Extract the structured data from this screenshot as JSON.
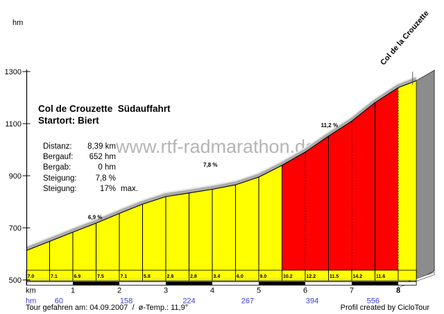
{
  "title": {
    "line1": "Col de Crouzette  Südauffahrt",
    "line2": "Startort: Biert"
  },
  "stats": {
    "rows": [
      {
        "label": "Distanz:",
        "value": "8,39 km"
      },
      {
        "label": "Bergauf:",
        "value": "652 hm"
      },
      {
        "label": "Bergab:",
        "value": "0 hm"
      },
      {
        "label": "Steigung:",
        "value": "7,8 %"
      },
      {
        "label": "Steigung:",
        "value": "17%",
        "suffix": "max."
      }
    ]
  },
  "watermark": "www.rtf-radmarathon.de",
  "summit_label": "Col de la Crouzette",
  "footer": {
    "left": "Tour gefahren am: 04.09.2007  /  ø-Temp.: 11,9°",
    "right": "Profil created by CicloTour"
  },
  "chart_data": {
    "type": "area",
    "title": "Col de Crouzette  Südauffahrt",
    "subtitle": "Startort: Biert",
    "xlabel": "km",
    "ylabel": "hm",
    "climb_row_label": "hm",
    "xlim": [
      0,
      8.39
    ],
    "ylim": [
      500,
      1300
    ],
    "x_ticks": [
      1,
      2,
      3,
      4,
      5,
      6,
      7,
      8
    ],
    "y_ticks": [
      500,
      700,
      900,
      1100,
      1300
    ],
    "grid": false,
    "start_elevation_hm": 613,
    "summit_elevation_hm": 1265,
    "summit_name": "Col de la Crouzette",
    "summit_marker_km": 8.31,
    "segments": [
      {
        "km_from": 0.0,
        "km_to": 0.5,
        "gradient_pct": 7.0,
        "label": "7.0",
        "steep": false
      },
      {
        "km_from": 0.5,
        "km_to": 1.0,
        "gradient_pct": 7.1,
        "label": "7.1",
        "steep": false
      },
      {
        "km_from": 1.0,
        "km_to": 1.5,
        "gradient_pct": 6.9,
        "label": "6.9",
        "steep": false
      },
      {
        "km_from": 1.5,
        "km_to": 2.0,
        "gradient_pct": 7.5,
        "label": "7.5",
        "steep": false
      },
      {
        "km_from": 2.0,
        "km_to": 2.5,
        "gradient_pct": 7.1,
        "label": "7.1",
        "steep": false
      },
      {
        "km_from": 2.5,
        "km_to": 3.0,
        "gradient_pct": 5.8,
        "label": "5.8",
        "steep": false
      },
      {
        "km_from": 3.0,
        "km_to": 3.5,
        "gradient_pct": 2.8,
        "label": "2.8",
        "steep": false
      },
      {
        "km_from": 3.5,
        "km_to": 4.0,
        "gradient_pct": 2.8,
        "label": "2.8",
        "steep": false
      },
      {
        "km_from": 4.0,
        "km_to": 4.5,
        "gradient_pct": 3.4,
        "label": "3.4",
        "steep": false
      },
      {
        "km_from": 4.5,
        "km_to": 5.0,
        "gradient_pct": 6.0,
        "label": "6.0",
        "steep": false
      },
      {
        "km_from": 5.0,
        "km_to": 5.5,
        "gradient_pct": 9.0,
        "label": "9.0",
        "steep": false
      },
      {
        "km_from": 5.5,
        "km_to": 6.0,
        "gradient_pct": 10.2,
        "label": "10.2",
        "steep": true
      },
      {
        "km_from": 6.0,
        "km_to": 6.5,
        "gradient_pct": 12.2,
        "label": "12.2",
        "steep": true
      },
      {
        "km_from": 6.5,
        "km_to": 7.0,
        "gradient_pct": 11.5,
        "label": "11.5",
        "steep": true
      },
      {
        "km_from": 7.0,
        "km_to": 7.5,
        "gradient_pct": 14.2,
        "label": "14.2",
        "steep": true
      },
      {
        "km_from": 7.5,
        "km_to": 8.0,
        "gradient_pct": 11.6,
        "label": "11.6",
        "steep": true
      },
      {
        "km_from": 8.0,
        "km_to": 8.39,
        "gradient_pct": null,
        "label": "",
        "steep": false
      }
    ],
    "climb_markers": [
      {
        "x_km": 0.7,
        "value": "60"
      },
      {
        "x_km": 2.15,
        "value": "158"
      },
      {
        "x_km": 3.5,
        "value": "224"
      },
      {
        "x_km": 4.76,
        "value": "267"
      },
      {
        "x_km": 6.15,
        "value": "394"
      },
      {
        "x_km": 7.46,
        "value": "556"
      }
    ],
    "gradient_callouts": [
      {
        "label": "6,9 %",
        "x_km": 1.48,
        "y_hm": 742
      },
      {
        "label": "7,8 %",
        "x_km": 3.96,
        "y_hm": 943
      },
      {
        "label": "11,2 %",
        "x_km": 6.52,
        "y_hm": 1095
      }
    ],
    "colors": {
      "easy": "#ffff00",
      "steep": "#ff0000",
      "side_panel": "#8c8c8c",
      "road_band": "#ababab",
      "road_highlight": "#e8e8e8",
      "outline": "#000000",
      "climb_text": "#3c3cd8",
      "watermark": "#b5b5b5"
    }
  }
}
